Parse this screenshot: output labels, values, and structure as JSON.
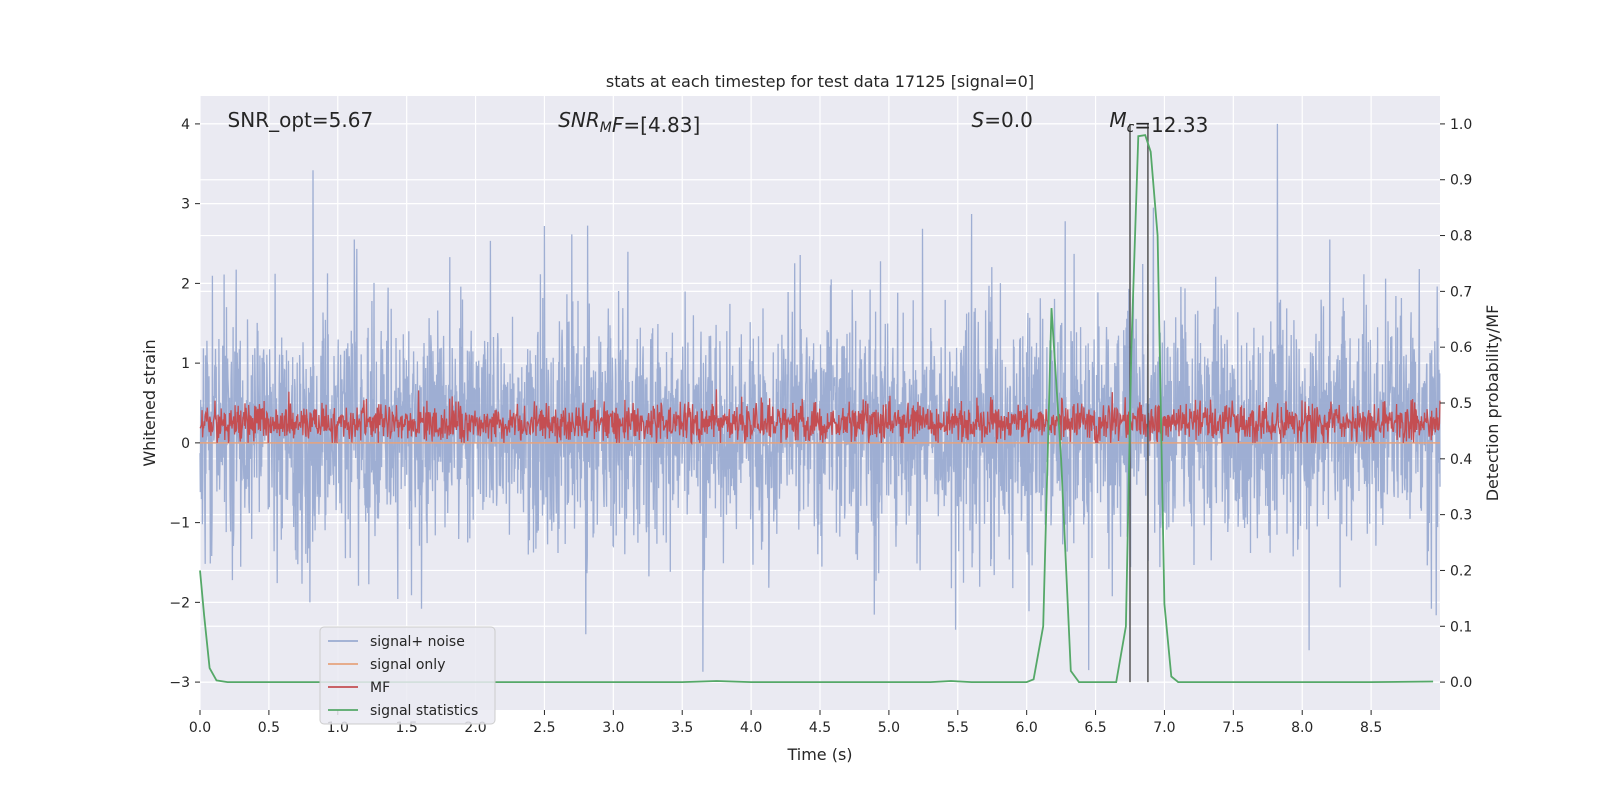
{
  "chart_data": {
    "type": "line",
    "title": "stats at each timestep for test data 17125 [signal=0]",
    "xlabel": "Time (s)",
    "ylabel": "Whitened strain",
    "ylabel_right": "Detection probability/MF",
    "xlim": [
      0.0,
      9.0
    ],
    "ylim": [
      -3.35,
      4.35
    ],
    "ylim_right": [
      -0.05,
      1.05
    ],
    "x_ticks": [
      0.0,
      0.5,
      1.0,
      1.5,
      2.0,
      2.5,
      3.0,
      3.5,
      4.0,
      4.5,
      5.0,
      5.5,
      6.0,
      6.5,
      7.0,
      7.5,
      8.0,
      8.5
    ],
    "x_tick_labels": [
      "0.0",
      "0.5",
      "1.0",
      "1.5",
      "2.0",
      "2.5",
      "3.0",
      "3.5",
      "4.0",
      "4.5",
      "5.0",
      "5.5",
      "6.0",
      "6.5",
      "7.0",
      "7.5",
      "8.0",
      "8.5"
    ],
    "y_ticks": [
      -3,
      -2,
      -1,
      0,
      1,
      2,
      3,
      4
    ],
    "y_tick_labels": [
      "−3",
      "−2",
      "−1",
      "0",
      "1",
      "2",
      "3",
      "4"
    ],
    "y_right_ticks": [
      0.0,
      0.1,
      0.2,
      0.3,
      0.4,
      0.5,
      0.6,
      0.7,
      0.8,
      0.9,
      1.0
    ],
    "y_right_tick_labels": [
      "0.0",
      "0.1",
      "0.2",
      "0.3",
      "0.4",
      "0.5",
      "0.6",
      "0.7",
      "0.8",
      "0.9",
      "1.0"
    ],
    "grid": true,
    "legend_position": "lower-left",
    "annotations": [
      {
        "prefix": "SNR_opt=5.67",
        "sub": "",
        "suffix": "",
        "italic": "",
        "x": 0.2,
        "y": 4.05
      },
      {
        "prefix": "",
        "italic": "SNR",
        "sub": "M",
        "suffix_italic": "F",
        "suffix": "=[4.83]",
        "x": 2.6,
        "y": 4.05
      },
      {
        "prefix": "",
        "italic": "S",
        "sub": "",
        "suffix_italic": "",
        "suffix": "=0.0",
        "x": 5.6,
        "y": 4.05
      },
      {
        "prefix": "",
        "italic": "M",
        "sub": "c",
        "suffix_italic": "",
        "suffix": "=12.33",
        "x": 6.6,
        "y": 4.05
      }
    ],
    "series": [
      {
        "name": "signal+ noise",
        "color": "#9aabd1",
        "style": "noise",
        "axis": "left",
        "seed": 17125,
        "sigma": 0.72,
        "mean": 0.2,
        "x_range": [
          0.0,
          9.0
        ],
        "peaks": [
          [
            0.82,
            3.42
          ],
          [
            1.12,
            2.55
          ],
          [
            2.5,
            2.72
          ],
          [
            5.6,
            2.87
          ],
          [
            6.28,
            2.78
          ],
          [
            6.92,
            2.95
          ],
          [
            7.82,
            4.0
          ],
          [
            8.2,
            2.55
          ],
          [
            8.85,
            2.18
          ],
          [
            3.65,
            -2.87
          ],
          [
            2.8,
            -2.4
          ],
          [
            6.45,
            -2.85
          ],
          [
            8.05,
            -2.6
          ]
        ]
      },
      {
        "name": "signal only",
        "color": "#e6a37e",
        "style": "line",
        "axis": "left",
        "x": [
          0.0,
          9.0
        ],
        "y": [
          0.0,
          0.0
        ]
      },
      {
        "name": "MF",
        "color": "#c44e52",
        "style": "mf",
        "axis": "left",
        "mean": 0.25,
        "sigma": 0.12,
        "x_range": [
          0.0,
          9.0
        ]
      },
      {
        "name": "signal statistics",
        "color": "#55a868",
        "style": "line",
        "axis": "right",
        "x": [
          0.0,
          0.03,
          0.07,
          0.12,
          0.2,
          0.5,
          1.0,
          2.0,
          3.0,
          3.5,
          3.75,
          4.0,
          5.0,
          5.3,
          5.45,
          5.6,
          6.0,
          6.05,
          6.12,
          6.18,
          6.25,
          6.32,
          6.38,
          6.45,
          6.55,
          6.65,
          6.72,
          6.76,
          6.81,
          6.86,
          6.9,
          6.95,
          7.0,
          7.05,
          7.1,
          7.2,
          7.5,
          8.0,
          8.5,
          8.95
        ],
        "y": [
          0.2,
          0.12,
          0.025,
          0.003,
          0.0,
          0.0,
          0.0,
          0.0,
          0.0,
          0.0,
          0.002,
          0.0,
          0.0,
          0.0,
          0.002,
          0.0,
          0.0,
          0.005,
          0.1,
          0.67,
          0.4,
          0.02,
          0.0,
          0.0,
          0.0,
          0.0,
          0.1,
          0.6,
          0.978,
          0.98,
          0.95,
          0.8,
          0.14,
          0.01,
          0.0,
          0.0,
          0.0,
          0.0,
          0.0,
          0.001
        ]
      }
    ],
    "vertical_lines": [
      {
        "x": 6.75,
        "color": "#555555"
      },
      {
        "x": 6.88,
        "color": "#555555"
      }
    ]
  }
}
